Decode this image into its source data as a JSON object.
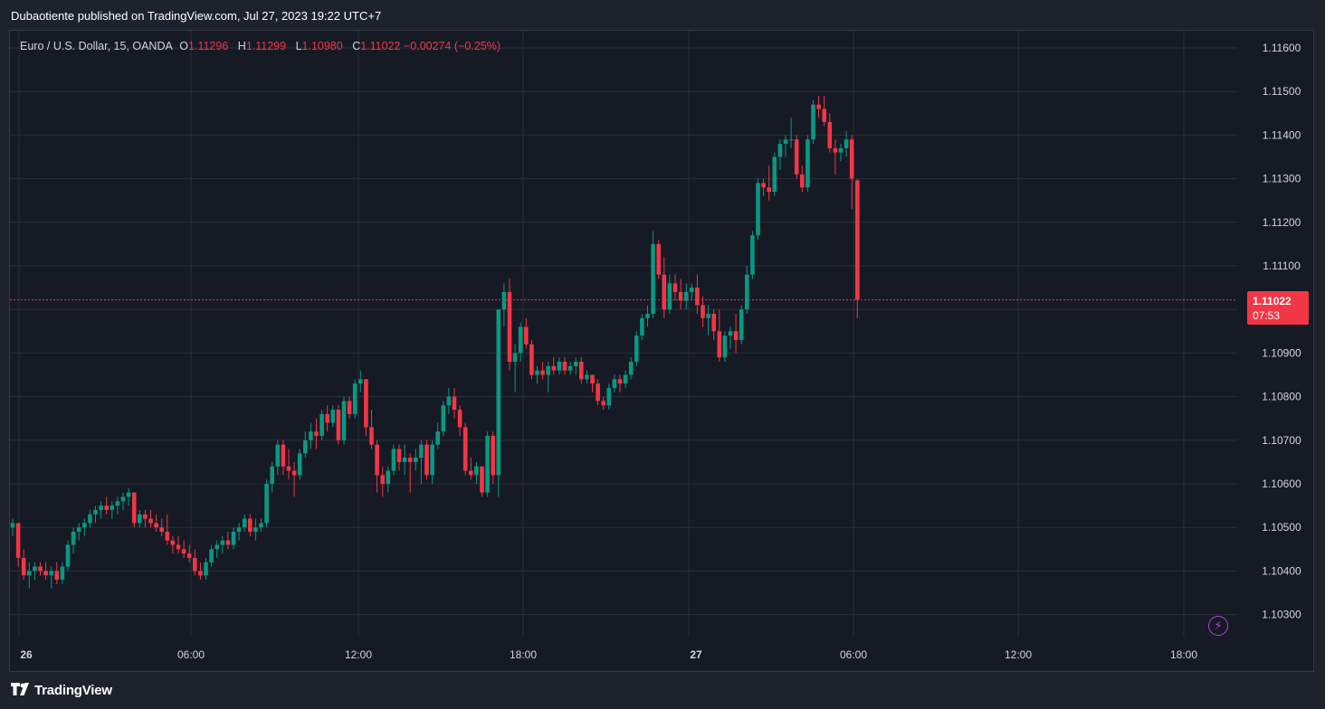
{
  "publisher_line": "Dubaotiente published on TradingView.com, Jul 27, 2023 19:22 UTC+7",
  "legend": {
    "symbol": "Euro / U.S. Dollar, 15, OANDA",
    "open_label": "O",
    "open": "1.11296",
    "high_label": "H",
    "high": "1.11299",
    "low_label": "L",
    "low": "1.10980",
    "close_label": "C",
    "close": "1.11022",
    "change": "−0.00274 (−0.25%)"
  },
  "last_price": {
    "price": "1.11022",
    "countdown": "07:53"
  },
  "brand": {
    "name": "TradingView"
  },
  "colors": {
    "up": "#089981",
    "down": "#f23645",
    "background": "#161a25",
    "grid": "#2a2e39",
    "text": "#d1d4dc",
    "alert_icon": "#b044d6"
  },
  "icons": {
    "alert": "flash-icon",
    "logo": "tradingview-logo-icon"
  },
  "chart_data": {
    "type": "candlestick",
    "symbol": "EURUSD",
    "timeframe": "15",
    "x_ticks": [
      "26",
      "06:00",
      "12:00",
      "18:00",
      "27",
      "06:00",
      "12:00",
      "18:00"
    ],
    "y_ticks": [
      "1.11600",
      "1.11500",
      "1.11400",
      "1.11300",
      "1.11200",
      "1.11100",
      "1.11000",
      "1.10900",
      "1.10800",
      "1.10700",
      "1.10600",
      "1.10500",
      "1.10400",
      "1.10300"
    ],
    "ylim": [
      1.1024,
      1.1168
    ],
    "grid": true,
    "last_price": 1.11022,
    "candles": [
      [
        1.105,
        1.1052,
        1.1048,
        1.1051
      ],
      [
        1.1051,
        1.1051,
        1.1041,
        1.1043
      ],
      [
        1.1043,
        1.1045,
        1.1038,
        1.1039
      ],
      [
        1.1039,
        1.1042,
        1.1036,
        1.104
      ],
      [
        1.104,
        1.1042,
        1.1038,
        1.1041
      ],
      [
        1.1041,
        1.1042,
        1.1039,
        1.104
      ],
      [
        1.104,
        1.1042,
        1.1038,
        1.1039
      ],
      [
        1.1039,
        1.1041,
        1.1036,
        1.104
      ],
      [
        1.104,
        1.1042,
        1.1037,
        1.1038
      ],
      [
        1.1038,
        1.1042,
        1.1037,
        1.1041
      ],
      [
        1.1041,
        1.1047,
        1.104,
        1.1046
      ],
      [
        1.1046,
        1.105,
        1.1044,
        1.1049
      ],
      [
        1.1049,
        1.1051,
        1.1047,
        1.105
      ],
      [
        1.105,
        1.1052,
        1.1048,
        1.1051
      ],
      [
        1.1051,
        1.1054,
        1.105,
        1.1053
      ],
      [
        1.1053,
        1.1055,
        1.1051,
        1.1054
      ],
      [
        1.1054,
        1.1056,
        1.1052,
        1.1055
      ],
      [
        1.1055,
        1.1057,
        1.1053,
        1.1054
      ],
      [
        1.1054,
        1.1056,
        1.1052,
        1.1055
      ],
      [
        1.1055,
        1.1057,
        1.1053,
        1.1056
      ],
      [
        1.1056,
        1.1058,
        1.1054,
        1.1057
      ],
      [
        1.1057,
        1.1059,
        1.1055,
        1.1058
      ],
      [
        1.1058,
        1.1058,
        1.105,
        1.1051
      ],
      [
        1.1051,
        1.1054,
        1.105,
        1.1053
      ],
      [
        1.1053,
        1.1054,
        1.105,
        1.1052
      ],
      [
        1.1052,
        1.1054,
        1.105,
        1.1051
      ],
      [
        1.1051,
        1.1053,
        1.1049,
        1.105
      ],
      [
        1.105,
        1.1052,
        1.1048,
        1.1049
      ],
      [
        1.1049,
        1.1053,
        1.1046,
        1.1047
      ],
      [
        1.1047,
        1.1048,
        1.1044,
        1.1046
      ],
      [
        1.1046,
        1.1048,
        1.1044,
        1.1045
      ],
      [
        1.1045,
        1.1047,
        1.1043,
        1.1044
      ],
      [
        1.1044,
        1.1046,
        1.1042,
        1.1043
      ],
      [
        1.1043,
        1.1045,
        1.1039,
        1.104
      ],
      [
        1.104,
        1.1042,
        1.1038,
        1.1039
      ],
      [
        1.1039,
        1.1043,
        1.1038,
        1.1042
      ],
      [
        1.1042,
        1.1046,
        1.1041,
        1.1045
      ],
      [
        1.1045,
        1.1047,
        1.1043,
        1.1046
      ],
      [
        1.1046,
        1.1048,
        1.1044,
        1.1047
      ],
      [
        1.1047,
        1.1049,
        1.1045,
        1.1046
      ],
      [
        1.1046,
        1.105,
        1.1045,
        1.1049
      ],
      [
        1.1049,
        1.1051,
        1.1047,
        1.105
      ],
      [
        1.105,
        1.1053,
        1.1049,
        1.1052
      ],
      [
        1.1052,
        1.1053,
        1.1048,
        1.1049
      ],
      [
        1.1049,
        1.1052,
        1.1047,
        1.105
      ],
      [
        1.105,
        1.1052,
        1.1049,
        1.1051
      ],
      [
        1.1051,
        1.1061,
        1.105,
        1.106
      ],
      [
        1.106,
        1.1065,
        1.1058,
        1.1064
      ],
      [
        1.1064,
        1.107,
        1.1062,
        1.1069
      ],
      [
        1.1069,
        1.107,
        1.1062,
        1.1064
      ],
      [
        1.1064,
        1.1068,
        1.1061,
        1.1063
      ],
      [
        1.1063,
        1.1065,
        1.1057,
        1.1062
      ],
      [
        1.1062,
        1.1068,
        1.1061,
        1.1067
      ],
      [
        1.1067,
        1.1072,
        1.1066,
        1.107
      ],
      [
        1.107,
        1.1074,
        1.1068,
        1.1072
      ],
      [
        1.1072,
        1.1075,
        1.1068,
        1.1071
      ],
      [
        1.1071,
        1.1077,
        1.107,
        1.1076
      ],
      [
        1.1076,
        1.1078,
        1.1072,
        1.1074
      ],
      [
        1.1074,
        1.1078,
        1.1073,
        1.1077
      ],
      [
        1.1077,
        1.1078,
        1.1069,
        1.107
      ],
      [
        1.107,
        1.108,
        1.1069,
        1.1079
      ],
      [
        1.1079,
        1.108,
        1.1075,
        1.1076
      ],
      [
        1.1076,
        1.1084,
        1.1075,
        1.1083
      ],
      [
        1.1083,
        1.1086,
        1.1081,
        1.1084
      ],
      [
        1.1084,
        1.1084,
        1.1071,
        1.1073
      ],
      [
        1.1073,
        1.1077,
        1.1068,
        1.1069
      ],
      [
        1.1069,
        1.107,
        1.1058,
        1.1062
      ],
      [
        1.1062,
        1.1064,
        1.1057,
        1.106
      ],
      [
        1.106,
        1.1064,
        1.1058,
        1.1063
      ],
      [
        1.1063,
        1.1069,
        1.1062,
        1.1068
      ],
      [
        1.1068,
        1.1069,
        1.1063,
        1.1065
      ],
      [
        1.1065,
        1.1069,
        1.1062,
        1.1066
      ],
      [
        1.1066,
        1.1067,
        1.1058,
        1.1065
      ],
      [
        1.1065,
        1.1068,
        1.1063,
        1.1066
      ],
      [
        1.1066,
        1.107,
        1.106,
        1.1069
      ],
      [
        1.1069,
        1.107,
        1.1061,
        1.1062
      ],
      [
        1.1062,
        1.107,
        1.106,
        1.1069
      ],
      [
        1.1069,
        1.1074,
        1.1068,
        1.1072
      ],
      [
        1.1072,
        1.1079,
        1.1071,
        1.1078
      ],
      [
        1.1078,
        1.1082,
        1.1076,
        1.108
      ],
      [
        1.108,
        1.1082,
        1.1075,
        1.1077
      ],
      [
        1.1077,
        1.1078,
        1.1071,
        1.1073
      ],
      [
        1.1073,
        1.1074,
        1.1062,
        1.1063
      ],
      [
        1.1063,
        1.1066,
        1.1061,
        1.1062
      ],
      [
        1.1062,
        1.1065,
        1.106,
        1.1064
      ],
      [
        1.1064,
        1.1064,
        1.1057,
        1.1058
      ],
      [
        1.1058,
        1.1072,
        1.1057,
        1.1071
      ],
      [
        1.1071,
        1.1072,
        1.106,
        1.1062
      ],
      [
        1.1062,
        1.11,
        1.1057,
        1.11
      ],
      [
        1.11,
        1.1106,
        1.1096,
        1.1104
      ],
      [
        1.1104,
        1.1107,
        1.1086,
        1.1088
      ],
      [
        1.1088,
        1.1092,
        1.1081,
        1.109
      ],
      [
        1.109,
        1.1097,
        1.1088,
        1.1096
      ],
      [
        1.1096,
        1.1098,
        1.1091,
        1.1092
      ],
      [
        1.1092,
        1.1093,
        1.1084,
        1.1085
      ],
      [
        1.1085,
        1.1087,
        1.1083,
        1.1086
      ],
      [
        1.1086,
        1.1088,
        1.1084,
        1.1085
      ],
      [
        1.1085,
        1.1088,
        1.1081,
        1.1087
      ],
      [
        1.1087,
        1.1089,
        1.1085,
        1.1086
      ],
      [
        1.1086,
        1.1089,
        1.1085,
        1.1088
      ],
      [
        1.1088,
        1.1089,
        1.1085,
        1.1086
      ],
      [
        1.1086,
        1.1088,
        1.1085,
        1.1087
      ],
      [
        1.1087,
        1.1089,
        1.1085,
        1.1088
      ],
      [
        1.1088,
        1.1089,
        1.1083,
        1.1084
      ],
      [
        1.1084,
        1.1086,
        1.1083,
        1.1085
      ],
      [
        1.1085,
        1.1085,
        1.1081,
        1.1083
      ],
      [
        1.1083,
        1.1084,
        1.1078,
        1.1079
      ],
      [
        1.1079,
        1.108,
        1.1077,
        1.1078
      ],
      [
        1.1078,
        1.1083,
        1.1077,
        1.1082
      ],
      [
        1.1082,
        1.1085,
        1.1081,
        1.1084
      ],
      [
        1.1084,
        1.1085,
        1.1081,
        1.1083
      ],
      [
        1.1083,
        1.1086,
        1.1082,
        1.1085
      ],
      [
        1.1085,
        1.1089,
        1.1084,
        1.1088
      ],
      [
        1.1088,
        1.1095,
        1.1087,
        1.1094
      ],
      [
        1.1094,
        1.1099,
        1.1093,
        1.1098
      ],
      [
        1.1098,
        1.1101,
        1.1096,
        1.1099
      ],
      [
        1.1099,
        1.1118,
        1.1098,
        1.1115
      ],
      [
        1.1115,
        1.1116,
        1.1107,
        1.1108
      ],
      [
        1.1108,
        1.1112,
        1.1098,
        1.11
      ],
      [
        1.11,
        1.1108,
        1.1099,
        1.1106
      ],
      [
        1.1106,
        1.1108,
        1.1102,
        1.1104
      ],
      [
        1.1104,
        1.1107,
        1.11,
        1.1102
      ],
      [
        1.1102,
        1.1106,
        1.11,
        1.1104
      ],
      [
        1.1104,
        1.1106,
        1.1102,
        1.1105
      ],
      [
        1.1105,
        1.1108,
        1.1099,
        1.1101
      ],
      [
        1.1101,
        1.1103,
        1.1096,
        1.1098
      ],
      [
        1.1098,
        1.1101,
        1.1094,
        1.1099
      ],
      [
        1.1099,
        1.11,
        1.1093,
        1.1095
      ],
      [
        1.1095,
        1.11,
        1.1088,
        1.1089
      ],
      [
        1.1089,
        1.1095,
        1.1088,
        1.1094
      ],
      [
        1.1094,
        1.1096,
        1.1091,
        1.1095
      ],
      [
        1.1095,
        1.1099,
        1.109,
        1.1093
      ],
      [
        1.1093,
        1.1101,
        1.1092,
        1.11
      ],
      [
        1.11,
        1.111,
        1.1099,
        1.1108
      ],
      [
        1.1108,
        1.1118,
        1.1107,
        1.1117
      ],
      [
        1.1117,
        1.113,
        1.1116,
        1.1129
      ],
      [
        1.1129,
        1.113,
        1.1126,
        1.1128
      ],
      [
        1.1128,
        1.1133,
        1.1125,
        1.1127
      ],
      [
        1.1127,
        1.1136,
        1.1126,
        1.1135
      ],
      [
        1.1135,
        1.1139,
        1.1132,
        1.1138
      ],
      [
        1.1138,
        1.114,
        1.1135,
        1.1139
      ],
      [
        1.1139,
        1.1144,
        1.1137,
        1.1139
      ],
      [
        1.1139,
        1.114,
        1.113,
        1.1131
      ],
      [
        1.1131,
        1.1133,
        1.1127,
        1.1128
      ],
      [
        1.1128,
        1.114,
        1.1127,
        1.1139
      ],
      [
        1.1139,
        1.1148,
        1.1138,
        1.1147
      ],
      [
        1.1147,
        1.1149,
        1.1144,
        1.1146
      ],
      [
        1.1146,
        1.1149,
        1.1142,
        1.1143
      ],
      [
        1.1143,
        1.1145,
        1.1136,
        1.1137
      ],
      [
        1.1137,
        1.1139,
        1.1131,
        1.1136
      ],
      [
        1.1136,
        1.1138,
        1.1134,
        1.1137
      ],
      [
        1.1137,
        1.1141,
        1.1135,
        1.1139
      ],
      [
        1.1139,
        1.114,
        1.1123,
        1.113
      ],
      [
        1.11296,
        1.11299,
        1.1098,
        1.11022
      ]
    ]
  }
}
